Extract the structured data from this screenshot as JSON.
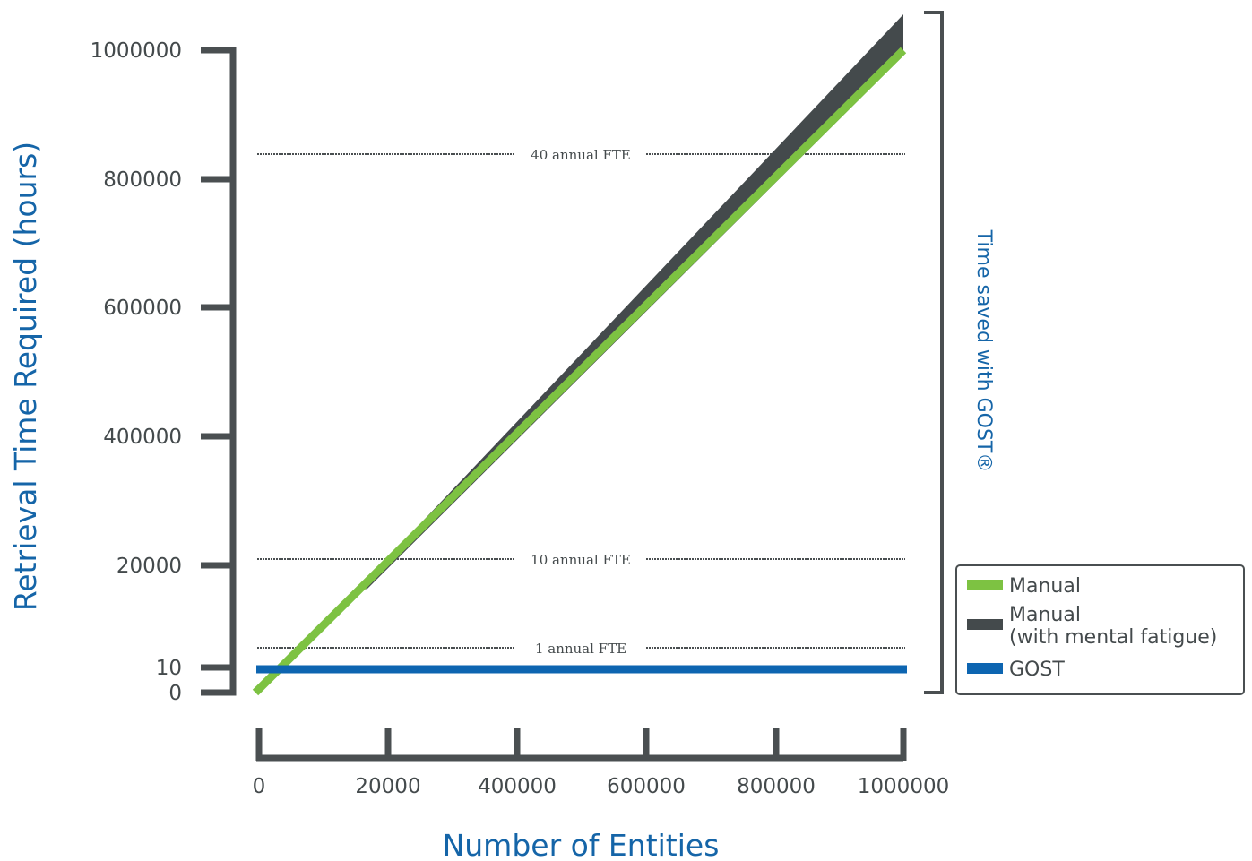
{
  "colors": {
    "manual": "#7dc242",
    "fatigue": "#444a4c",
    "gost": "#0d65b1",
    "axis": "#4a4f51",
    "title": "#1565a8"
  },
  "chart_data": {
    "type": "line",
    "xlabel": "Number of Entities",
    "ylabel": "Retrieval Time Required (hours)",
    "x_ticks": [
      "0",
      "20000",
      "400000",
      "600000",
      "800000",
      "1000000"
    ],
    "y_ticks": [
      "0",
      "10",
      "20000",
      "400000",
      "600000",
      "800000",
      "1000000"
    ],
    "series": [
      {
        "name": "Manual",
        "x": [
          "0",
          "1000000"
        ],
        "values": [
          "0",
          "1000000"
        ]
      },
      {
        "name": "Manual\n(with mental fatigue)",
        "x": [
          "20000",
          "1000000"
        ],
        "values": [
          "20000",
          "1050000"
        ]
      },
      {
        "name": "GOST",
        "x": [
          "0",
          "1000000"
        ],
        "values": [
          "10",
          "10"
        ]
      }
    ],
    "reference_lines": [
      {
        "label": "40 annual FTE"
      },
      {
        "label": "10 annual FTE"
      },
      {
        "label": "1 annual FTE"
      }
    ],
    "annotation": "Time saved with GOST®",
    "legend_position": "bottom-right"
  }
}
